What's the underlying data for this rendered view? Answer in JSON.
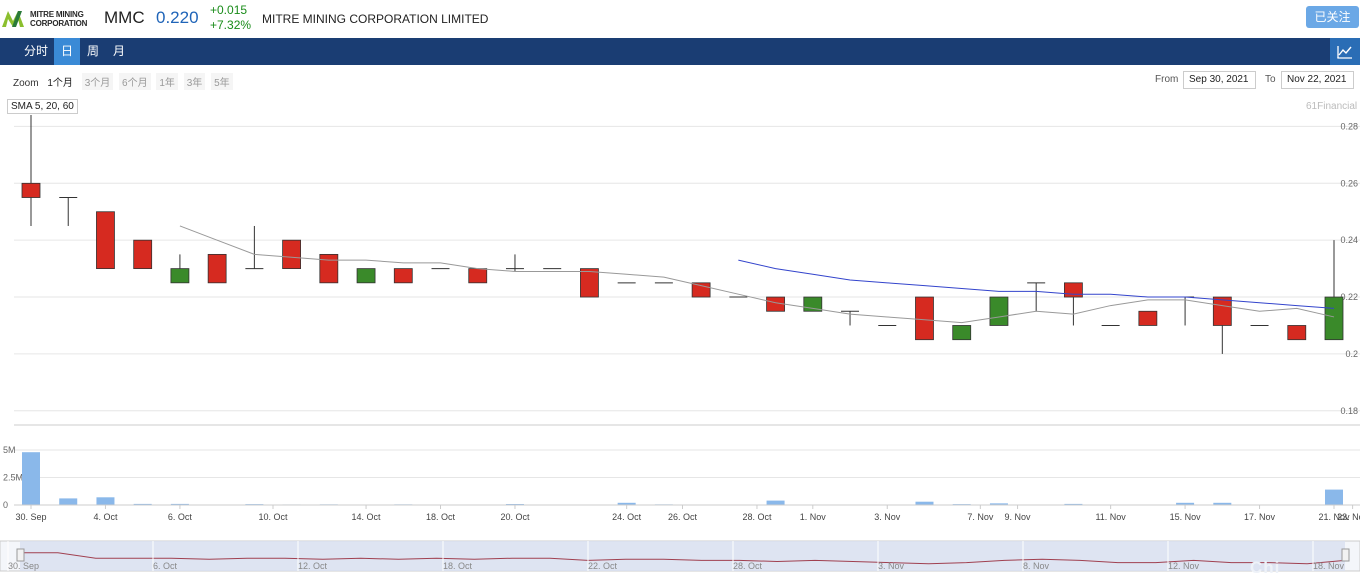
{
  "header": {
    "logo_line1": "MITRE MINING",
    "logo_line2": "CORPORATION",
    "ticker": "MMC",
    "price": "0.220",
    "change_abs": "+0.015",
    "change_pct": "+7.32%",
    "company": "MITRE MINING CORPORATION LIMITED",
    "follow_label": "已关注"
  },
  "nav": {
    "tabs": [
      {
        "label": "分时",
        "active": false
      },
      {
        "label": "日",
        "active": true
      },
      {
        "label": "周",
        "active": false
      },
      {
        "label": "月",
        "active": false
      }
    ],
    "chart_icon": "line-chart-icon"
  },
  "zoom": {
    "label": "Zoom",
    "options": [
      {
        "label": "1个月",
        "active": true
      },
      {
        "label": "3个月",
        "active": false
      },
      {
        "label": "6个月",
        "active": false
      },
      {
        "label": "1年",
        "active": false
      },
      {
        "label": "3年",
        "active": false
      },
      {
        "label": "5年",
        "active": false
      }
    ]
  },
  "range": {
    "from_label": "From",
    "from_value": "Sep 30, 2021",
    "to_label": "To",
    "to_value": "Nov 22, 2021"
  },
  "indicator_label": "SMA 5, 20, 60",
  "watermark": "61Financial",
  "bottom_brand": "Chi",
  "colors": {
    "up": "#3a8a2a",
    "down": "#d62a20",
    "sma5": "#999999",
    "sma20": "#3344cc",
    "volume": "#8ab8ea",
    "navbar": "#1a3d73",
    "tab_active": "#3a8ad6"
  },
  "chart_data": {
    "type": "candlestick",
    "ylim": [
      0.175,
      0.29
    ],
    "y_ticks": [
      "0.28",
      "0.26",
      "0.24",
      "0.22",
      "0.2",
      "0.18"
    ],
    "y_tick_values": [
      0.28,
      0.26,
      0.24,
      0.22,
      0.2,
      0.18
    ],
    "x_labels": [
      "30. Sep",
      "4. Oct",
      "6. Oct",
      "10. Oct",
      "14. Oct",
      "18. Oct",
      "20. Oct",
      "24. Oct",
      "26. Oct",
      "28. Oct",
      "1. Nov",
      "3. Nov",
      "7. Nov",
      "9. Nov",
      "11. Nov",
      "15. Nov",
      "17. Nov",
      "21. Nov",
      "23. Nov"
    ],
    "x_label_slots": [
      0,
      2,
      4,
      6.5,
      9,
      11,
      13,
      16,
      17.5,
      19.5,
      21,
      23,
      25.5,
      26.5,
      29,
      31,
      33,
      35,
      35.5
    ],
    "candles": [
      {
        "o": 0.26,
        "h": 0.284,
        "l": 0.245,
        "c": 0.255
      },
      {
        "o": 0.255,
        "h": 0.255,
        "l": 0.245,
        "c": 0.255
      },
      {
        "o": 0.25,
        "h": 0.25,
        "l": 0.23,
        "c": 0.23
      },
      {
        "o": 0.24,
        "h": 0.24,
        "l": 0.23,
        "c": 0.23
      },
      {
        "o": 0.225,
        "h": 0.235,
        "l": 0.225,
        "c": 0.23
      },
      {
        "o": 0.235,
        "h": 0.235,
        "l": 0.225,
        "c": 0.225
      },
      {
        "o": 0.23,
        "h": 0.245,
        "l": 0.23,
        "c": 0.23
      },
      {
        "o": 0.24,
        "h": 0.24,
        "l": 0.23,
        "c": 0.23
      },
      {
        "o": 0.235,
        "h": 0.235,
        "l": 0.225,
        "c": 0.225
      },
      {
        "o": 0.225,
        "h": 0.23,
        "l": 0.225,
        "c": 0.23
      },
      {
        "o": 0.23,
        "h": 0.23,
        "l": 0.225,
        "c": 0.225
      },
      {
        "o": 0.23,
        "h": 0.23,
        "l": 0.23,
        "c": 0.23
      },
      {
        "o": 0.23,
        "h": 0.23,
        "l": 0.225,
        "c": 0.225
      },
      {
        "o": 0.23,
        "h": 0.235,
        "l": 0.229,
        "c": 0.23
      },
      {
        "o": 0.23,
        "h": 0.23,
        "l": 0.23,
        "c": 0.23
      },
      {
        "o": 0.23,
        "h": 0.23,
        "l": 0.22,
        "c": 0.22
      },
      {
        "o": 0.225,
        "h": 0.225,
        "l": 0.225,
        "c": 0.225
      },
      {
        "o": 0.225,
        "h": 0.225,
        "l": 0.225,
        "c": 0.225
      },
      {
        "o": 0.225,
        "h": 0.225,
        "l": 0.22,
        "c": 0.22
      },
      {
        "o": 0.22,
        "h": 0.22,
        "l": 0.22,
        "c": 0.22
      },
      {
        "o": 0.22,
        "h": 0.22,
        "l": 0.215,
        "c": 0.215
      },
      {
        "o": 0.215,
        "h": 0.22,
        "l": 0.215,
        "c": 0.22
      },
      {
        "o": 0.215,
        "h": 0.215,
        "l": 0.21,
        "c": 0.215
      },
      {
        "o": 0.21,
        "h": 0.21,
        "l": 0.21,
        "c": 0.21
      },
      {
        "o": 0.22,
        "h": 0.22,
        "l": 0.205,
        "c": 0.205
      },
      {
        "o": 0.205,
        "h": 0.21,
        "l": 0.205,
        "c": 0.21
      },
      {
        "o": 0.21,
        "h": 0.22,
        "l": 0.21,
        "c": 0.22
      },
      {
        "o": 0.225,
        "h": 0.225,
        "l": 0.215,
        "c": 0.225
      },
      {
        "o": 0.225,
        "h": 0.225,
        "l": 0.21,
        "c": 0.22
      },
      {
        "o": 0.21,
        "h": 0.21,
        "l": 0.21,
        "c": 0.21
      },
      {
        "o": 0.215,
        "h": 0.215,
        "l": 0.21,
        "c": 0.21
      },
      {
        "o": 0.22,
        "h": 0.22,
        "l": 0.21,
        "c": 0.22
      },
      {
        "o": 0.22,
        "h": 0.22,
        "l": 0.2,
        "c": 0.21
      },
      {
        "o": 0.21,
        "h": 0.21,
        "l": 0.21,
        "c": 0.21
      },
      {
        "o": 0.21,
        "h": 0.21,
        "l": 0.205,
        "c": 0.205
      },
      {
        "o": 0.205,
        "h": 0.24,
        "l": 0.205,
        "c": 0.22
      }
    ],
    "sma5": [
      null,
      null,
      null,
      null,
      0.245,
      0.24,
      0.235,
      0.234,
      0.233,
      0.233,
      0.232,
      0.232,
      0.23,
      0.229,
      0.229,
      0.229,
      0.228,
      0.227,
      0.224,
      0.221,
      0.218,
      0.216,
      0.214,
      0.213,
      0.212,
      0.211,
      0.213,
      0.215,
      0.214,
      0.217,
      0.219,
      0.219,
      0.217,
      0.215,
      0.216,
      0.213
    ],
    "sma20": [
      null,
      null,
      null,
      null,
      null,
      null,
      null,
      null,
      null,
      null,
      null,
      null,
      null,
      null,
      null,
      null,
      null,
      null,
      null,
      0.233,
      0.23,
      0.228,
      0.226,
      0.225,
      0.224,
      0.223,
      0.222,
      0.222,
      0.221,
      0.221,
      0.22,
      0.22,
      0.219,
      0.218,
      0.217,
      0.216
    ],
    "volume_ticks": [
      "5M",
      "2.5M",
      "0"
    ],
    "volume_tick_values": [
      5000000,
      2500000,
      0
    ],
    "volume_max": 5000000,
    "volume": [
      4800000,
      600000,
      700000,
      100000,
      100000,
      0,
      80000,
      50000,
      60000,
      0,
      60000,
      0,
      0,
      90000,
      0,
      0,
      200000,
      60000,
      0,
      0,
      400000,
      0,
      0,
      0,
      300000,
      80000,
      150000,
      0,
      100000,
      0,
      0,
      200000,
      200000,
      0,
      0,
      1400000
    ],
    "navigator_labels": [
      "30. Sep",
      "6. Oct",
      "12. Oct",
      "18. Oct",
      "22. Oct",
      "28. Oct",
      "3. Nov",
      "8. Nov",
      "12. Nov",
      "18. Nov"
    ]
  }
}
